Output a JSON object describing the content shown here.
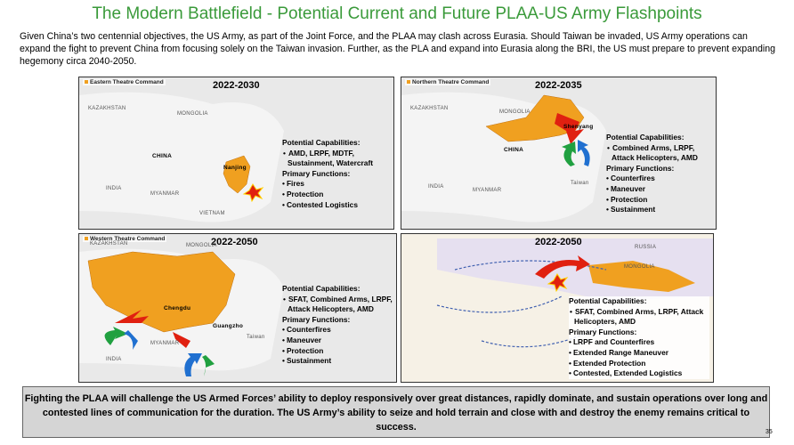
{
  "title": "The Modern Battlefield - Potential Current and Future PLAA-US Army Flashpoints",
  "intro": "Given China’s two centennial objectives, the US Army, as part of the Joint Force, and the PLAA may clash across Eurasia.  Should Taiwan be invaded, US Army operations can expand the fight to prevent China from focusing solely on the Taiwan invasion.  Further, as the PLA and expand into Eurasia along the BRI, the US must prepare to prevent expanding hegemony circa 2040-2050.",
  "panels": [
    {
      "theatre": "Eastern Theatre Command",
      "years": "2022-2030",
      "map_labels": [
        "KAZAKHSTAN",
        "MONGOLIA",
        "CHINA",
        "Nanjing",
        "INDIA",
        "MYANMAR",
        "VIETNAM"
      ],
      "capabilities_heading": "Potential Capabilities:",
      "capabilities": [
        "AMD, LRPF, MDTF, Sustainment, Watercraft"
      ],
      "functions_heading": "Primary Functions:",
      "functions": [
        "Fires",
        "Protection",
        "Contested Logistics"
      ]
    },
    {
      "theatre": "Northern Theatre Command",
      "years": "2022-2035",
      "map_labels": [
        "KAZAKHSTAN",
        "MONGOLIA",
        "CHINA",
        "Shenyang",
        "INDIA",
        "MYANMAR",
        "Taiwan"
      ],
      "capabilities_heading": "Potential Capabilities:",
      "capabilities": [
        "Combined Arms, LRPF, Attack Helicopters, AMD"
      ],
      "functions_heading": "Primary Functions:",
      "functions": [
        "Counterfires",
        "Maneuver",
        "Protection",
        "Sustainment"
      ]
    },
    {
      "theatre": "Western Theatre Command",
      "years": "2022-2050",
      "map_labels": [
        "KAZAKHSTAN",
        "MONGOLIA",
        "Chengdu",
        "Guangzho",
        "INDIA",
        "MYANMAR",
        "Taiwan"
      ],
      "capabilities_heading": "Potential Capabilities:",
      "capabilities": [
        "SFAT, Combined Arms, LRPF, Attack Helicopters, AMD"
      ],
      "functions_heading": "Primary Functions:",
      "functions": [
        "Counterfires",
        "Maneuver",
        "Protection",
        "Sustainment"
      ]
    },
    {
      "theatre": "",
      "years": "2022-2050",
      "map_labels": [
        "RUSSIA",
        "MONGOLIA"
      ],
      "capabilities_heading": "Potential Capabilities:",
      "capabilities": [
        "SFAT, Combined Arms, LRPF, Attack Helicopters, AMD"
      ],
      "functions_heading": "Primary Functions:",
      "functions": [
        "LRPF and Counterfires",
        "Extended Range Maneuver",
        "Extended Protection",
        "Contested, Extended  Logistics"
      ]
    }
  ],
  "conclusion": "Fighting the PLAA will challenge the US Armed Forces’ ability to deploy responsively over great distances, rapidly dominate, and sustain operations over long and contested lines of communication for the duration.  The US Army’s ability to seize and hold terrain and close with and destroy the enemy remains critical to success.",
  "page_number": "35"
}
